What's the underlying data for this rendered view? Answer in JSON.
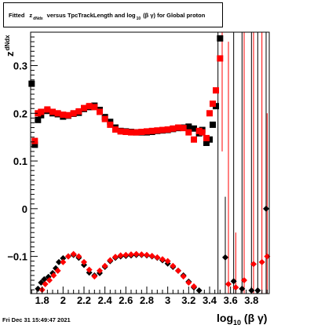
{
  "title": {
    "prefix": "Fitted",
    "z": "z",
    "z_sub": "dNdx",
    "mid": "versus TpcTrackLength and log",
    "log_sub": "10",
    "suffix": "(β γ) for Global proton"
  },
  "footer_text": "Fri Dec 31 15:49:47 2021",
  "axes": {
    "xlabel_main": "log",
    "xlabel_sub": "10",
    "xlabel_tail": " (β γ)",
    "ylabel_main": "z",
    "ylabel_sub": "dNdx",
    "x_ticks": [
      "1.8",
      "2",
      "2.2",
      "2.4",
      "2.6",
      "2.8",
      "3",
      "3.2",
      "3.4",
      "3.6",
      "3.8"
    ],
    "y_ticks": [
      "−0.1",
      "0",
      "0.1",
      "0.2",
      "0.3"
    ]
  },
  "chart_data": {
    "type": "scatter",
    "xlim": [
      1.69,
      3.97
    ],
    "ylim": [
      -0.178,
      0.37
    ],
    "x_tick_values": [
      1.8,
      2.0,
      2.2,
      2.4,
      2.6,
      2.8,
      3.0,
      3.2,
      3.4,
      3.6,
      3.8
    ],
    "y_tick_values": [
      -0.1,
      0.0,
      0.1,
      0.2,
      0.3
    ],
    "grid": false,
    "legend": "none",
    "colors": {
      "black": "#000000",
      "red": "#ff0000"
    },
    "series": [
      {
        "color": "black",
        "marker": "square",
        "points": [
          [
            1.7,
            0.262
          ],
          [
            1.73,
            0.134
          ],
          [
            1.76,
            0.186
          ],
          [
            1.79,
            0.196
          ],
          [
            1.85,
            0.205
          ],
          [
            1.9,
            0.2
          ],
          [
            1.95,
            0.198
          ],
          [
            2.0,
            0.193
          ],
          [
            2.05,
            0.195
          ],
          [
            2.1,
            0.199
          ],
          [
            2.15,
            0.201
          ],
          [
            2.2,
            0.209
          ],
          [
            2.25,
            0.213
          ],
          [
            2.3,
            0.216
          ],
          [
            2.35,
            0.207
          ],
          [
            2.4,
            0.192
          ],
          [
            2.45,
            0.182
          ],
          [
            2.5,
            0.17
          ],
          [
            2.55,
            0.163
          ],
          [
            2.6,
            0.162
          ],
          [
            2.65,
            0.161
          ],
          [
            2.7,
            0.16
          ],
          [
            2.75,
            0.16
          ],
          [
            2.8,
            0.16
          ],
          [
            2.85,
            0.161
          ],
          [
            2.9,
            0.163
          ],
          [
            2.95,
            0.164
          ],
          [
            3.0,
            0.165
          ],
          [
            3.05,
            0.167
          ],
          [
            3.1,
            0.169
          ],
          [
            3.15,
            0.17
          ],
          [
            3.2,
            0.172
          ],
          [
            3.25,
            0.168
          ],
          [
            3.3,
            0.158
          ],
          [
            3.33,
            0.165
          ],
          [
            3.37,
            0.138
          ],
          [
            3.4,
            0.145
          ],
          [
            3.43,
            0.176
          ],
          [
            3.46,
            0.215
          ],
          [
            3.5,
            0.357
          ]
        ]
      },
      {
        "color": "red",
        "marker": "square",
        "points": [
          [
            1.73,
            0.142
          ],
          [
            1.76,
            0.2
          ],
          [
            1.79,
            0.203
          ],
          [
            1.85,
            0.208
          ],
          [
            1.9,
            0.203
          ],
          [
            1.95,
            0.2
          ],
          [
            2.0,
            0.197
          ],
          [
            2.05,
            0.196
          ],
          [
            2.1,
            0.2
          ],
          [
            2.15,
            0.204
          ],
          [
            2.2,
            0.211
          ],
          [
            2.25,
            0.215
          ],
          [
            2.3,
            0.213
          ],
          [
            2.35,
            0.203
          ],
          [
            2.4,
            0.188
          ],
          [
            2.45,
            0.176
          ],
          [
            2.5,
            0.166
          ],
          [
            2.55,
            0.162
          ],
          [
            2.6,
            0.161
          ],
          [
            2.65,
            0.16
          ],
          [
            2.7,
            0.16
          ],
          [
            2.75,
            0.161
          ],
          [
            2.8,
            0.162
          ],
          [
            2.85,
            0.163
          ],
          [
            2.9,
            0.164
          ],
          [
            2.95,
            0.165
          ],
          [
            3.0,
            0.166
          ],
          [
            3.05,
            0.168
          ],
          [
            3.1,
            0.17
          ],
          [
            3.15,
            0.169
          ],
          [
            3.2,
            0.16
          ],
          [
            3.25,
            0.145
          ],
          [
            3.3,
            0.163
          ],
          [
            3.33,
            0.16
          ],
          [
            3.37,
            0.148
          ],
          [
            3.4,
            0.2
          ],
          [
            3.43,
            0.22
          ],
          [
            3.46,
            0.248
          ],
          [
            3.5,
            0.315
          ]
        ]
      },
      {
        "color": "black",
        "marker": "diamond",
        "points": [
          [
            1.76,
            -0.168
          ],
          [
            1.79,
            -0.155
          ],
          [
            1.82,
            -0.148
          ],
          [
            1.86,
            -0.143
          ],
          [
            1.9,
            -0.135
          ],
          [
            1.93,
            -0.125
          ],
          [
            1.96,
            -0.112
          ],
          [
            2.0,
            -0.104
          ],
          [
            2.05,
            -0.1
          ],
          [
            2.1,
            -0.097
          ],
          [
            2.15,
            -0.103
          ],
          [
            2.2,
            -0.118
          ],
          [
            2.25,
            -0.134
          ],
          [
            2.3,
            -0.14
          ],
          [
            2.35,
            -0.135
          ],
          [
            2.4,
            -0.122
          ],
          [
            2.45,
            -0.11
          ],
          [
            2.5,
            -0.103
          ],
          [
            2.55,
            -0.1
          ],
          [
            2.6,
            -0.099
          ],
          [
            2.65,
            -0.098
          ],
          [
            2.7,
            -0.097
          ],
          [
            2.75,
            -0.097
          ],
          [
            2.8,
            -0.098
          ],
          [
            2.85,
            -0.1
          ],
          [
            2.9,
            -0.103
          ],
          [
            2.95,
            -0.108
          ],
          [
            3.0,
            -0.115
          ],
          [
            3.05,
            -0.122
          ],
          [
            3.1,
            -0.13
          ],
          [
            3.15,
            -0.14
          ],
          [
            3.2,
            -0.153
          ],
          [
            3.25,
            -0.165
          ],
          [
            3.3,
            -0.175
          ],
          [
            3.55,
            -0.102
          ],
          [
            3.63,
            -0.152
          ],
          [
            3.71,
            -0.168
          ],
          [
            3.8,
            -0.173
          ],
          [
            3.86,
            -0.173
          ],
          [
            3.94,
            0.0
          ]
        ]
      },
      {
        "color": "red",
        "marker": "diamond",
        "points": [
          [
            1.8,
            -0.17
          ],
          [
            1.83,
            -0.158
          ],
          [
            1.87,
            -0.15
          ],
          [
            1.91,
            -0.14
          ],
          [
            1.95,
            -0.13
          ],
          [
            2.0,
            -0.112
          ],
          [
            2.05,
            -0.1
          ],
          [
            2.1,
            -0.095
          ],
          [
            2.15,
            -0.1
          ],
          [
            2.2,
            -0.112
          ],
          [
            2.25,
            -0.128
          ],
          [
            2.3,
            -0.142
          ],
          [
            2.35,
            -0.13
          ],
          [
            2.4,
            -0.12
          ],
          [
            2.45,
            -0.108
          ],
          [
            2.5,
            -0.101
          ],
          [
            2.55,
            -0.098
          ],
          [
            2.6,
            -0.097
          ],
          [
            2.65,
            -0.096
          ],
          [
            2.7,
            -0.095
          ],
          [
            2.75,
            -0.096
          ],
          [
            2.8,
            -0.097
          ],
          [
            2.85,
            -0.099
          ],
          [
            2.9,
            -0.102
          ],
          [
            2.95,
            -0.106
          ],
          [
            3.0,
            -0.11
          ],
          [
            3.05,
            -0.12
          ],
          [
            3.1,
            -0.13
          ],
          [
            3.15,
            -0.142
          ],
          [
            3.2,
            -0.155
          ],
          [
            3.25,
            -0.163
          ],
          [
            3.58,
            -0.158
          ],
          [
            3.65,
            -0.165
          ],
          [
            3.73,
            -0.15
          ],
          [
            3.82,
            -0.116
          ],
          [
            3.9,
            -0.112
          ],
          [
            3.95,
            -0.1
          ]
        ]
      }
    ],
    "error_bars": [
      {
        "color": "black",
        "x": 3.48,
        "y_low": -0.178,
        "y_high": 0.37
      },
      {
        "color": "red",
        "x": 3.52,
        "y_low": 0.12,
        "y_high": 0.37
      },
      {
        "color": "black",
        "x": 3.55,
        "y_low": -0.178,
        "y_high": 0.025
      },
      {
        "color": "red",
        "x": 3.58,
        "y_low": -0.178,
        "y_high": 0.35
      },
      {
        "color": "black",
        "x": 3.63,
        "y_low": -0.178,
        "y_high": 0.37
      },
      {
        "color": "red",
        "x": 3.65,
        "y_low": -0.178,
        "y_high": -0.05
      },
      {
        "color": "black",
        "x": 3.71,
        "y_low": -0.178,
        "y_high": 0.37
      },
      {
        "color": "red",
        "x": 3.73,
        "y_low": -0.178,
        "y_high": 0.37
      },
      {
        "color": "black",
        "x": 3.8,
        "y_low": -0.178,
        "y_high": 0.37
      },
      {
        "color": "red",
        "x": 3.82,
        "y_low": -0.178,
        "y_high": 0.37
      },
      {
        "color": "black",
        "x": 3.86,
        "y_low": -0.178,
        "y_high": 0.37
      },
      {
        "color": "red",
        "x": 3.9,
        "y_low": -0.178,
        "y_high": 0.37
      },
      {
        "color": "black",
        "x": 3.94,
        "y_low": -0.178,
        "y_high": 0.37
      },
      {
        "color": "red",
        "x": 3.95,
        "y_low": -0.178,
        "y_high": 0.2
      }
    ]
  }
}
